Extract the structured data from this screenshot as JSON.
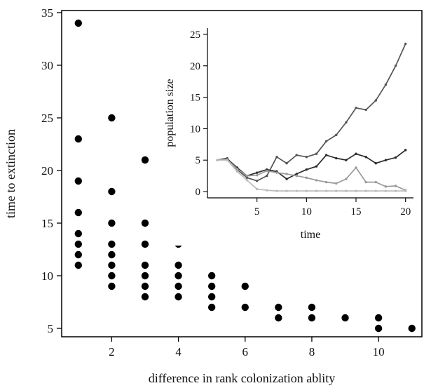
{
  "chart_data": [
    {
      "type": "scatter",
      "xlabel": "difference in rank colonization ablity",
      "ylabel": "time to extinction",
      "xlim": [
        0.5,
        11.3
      ],
      "ylim": [
        4.2,
        35.2
      ],
      "xticks": [
        2,
        4,
        6,
        8,
        10
      ],
      "yticks": [
        5,
        10,
        15,
        20,
        25,
        30,
        35
      ],
      "grid": false,
      "legend": "none",
      "marker_color": "#000000",
      "points": [
        {
          "x": 1,
          "y": 34
        },
        {
          "x": 1,
          "y": 23
        },
        {
          "x": 1,
          "y": 19
        },
        {
          "x": 1,
          "y": 16
        },
        {
          "x": 1,
          "y": 14
        },
        {
          "x": 1,
          "y": 13
        },
        {
          "x": 1,
          "y": 12
        },
        {
          "x": 1,
          "y": 11
        },
        {
          "x": 2,
          "y": 25
        },
        {
          "x": 2,
          "y": 18
        },
        {
          "x": 2,
          "y": 15
        },
        {
          "x": 2,
          "y": 13
        },
        {
          "x": 2,
          "y": 12
        },
        {
          "x": 2,
          "y": 11
        },
        {
          "x": 2,
          "y": 10
        },
        {
          "x": 2,
          "y": 9
        },
        {
          "x": 3,
          "y": 21
        },
        {
          "x": 3,
          "y": 15
        },
        {
          "x": 3,
          "y": 13
        },
        {
          "x": 3,
          "y": 11
        },
        {
          "x": 3,
          "y": 10
        },
        {
          "x": 3,
          "y": 9
        },
        {
          "x": 3,
          "y": 8
        },
        {
          "x": 4,
          "y": 13
        },
        {
          "x": 4,
          "y": 11
        },
        {
          "x": 4,
          "y": 10
        },
        {
          "x": 4,
          "y": 9
        },
        {
          "x": 4,
          "y": 8
        },
        {
          "x": 5,
          "y": 10
        },
        {
          "x": 5,
          "y": 9
        },
        {
          "x": 5,
          "y": 8
        },
        {
          "x": 5,
          "y": 7
        },
        {
          "x": 6,
          "y": 9
        },
        {
          "x": 6,
          "y": 7
        },
        {
          "x": 7,
          "y": 7
        },
        {
          "x": 7,
          "y": 6
        },
        {
          "x": 8,
          "y": 7
        },
        {
          "x": 8,
          "y": 6
        },
        {
          "x": 9,
          "y": 6
        },
        {
          "x": 10,
          "y": 6
        },
        {
          "x": 10,
          "y": 5
        },
        {
          "x": 11,
          "y": 5
        }
      ]
    },
    {
      "type": "line",
      "xlabel": "time",
      "ylabel": "population size",
      "xlim": [
        0,
        20.8
      ],
      "ylim": [
        -1,
        26
      ],
      "xticks": [
        5,
        10,
        15,
        20
      ],
      "yticks": [
        0,
        5,
        10,
        15,
        20,
        25
      ],
      "grid": false,
      "legend": "none",
      "x": [
        1,
        2,
        3,
        4,
        5,
        6,
        7,
        8,
        9,
        10,
        11,
        12,
        13,
        14,
        15,
        16,
        17,
        18,
        19,
        20
      ],
      "series": [
        {
          "color": "#555555",
          "values": [
            5,
            5.3,
            3.5,
            2.2,
            1.7,
            2.5,
            5.5,
            4.5,
            5.8,
            5.5,
            6,
            8,
            9,
            11,
            13.3,
            13,
            14.5,
            17,
            20,
            23.5
          ]
        },
        {
          "color": "#2b2b2b",
          "values": [
            5,
            5.2,
            3.8,
            2.5,
            3,
            3.5,
            3.2,
            2,
            2.8,
            3.5,
            4,
            5.8,
            5.3,
            5,
            6,
            5.5,
            4.5,
            5,
            5.4,
            6.6
          ]
        },
        {
          "color": "#9a9a9a",
          "values": [
            5,
            5.1,
            3.6,
            2.5,
            2.6,
            3.3,
            3,
            2.8,
            2.5,
            2.2,
            1.8,
            1.5,
            1.3,
            2,
            3.8,
            1.5,
            1.5,
            0.8,
            0.9,
            0.2
          ]
        },
        {
          "color": "#bcbcbc",
          "values": [
            5,
            5,
            3.2,
            1.8,
            0.4,
            0.2,
            0.1,
            0.1,
            0.1,
            0.1,
            0.1,
            0.1,
            0.1,
            0.1,
            0.1,
            0.1,
            0.1,
            0.1,
            0.1,
            0.1
          ]
        }
      ]
    }
  ]
}
